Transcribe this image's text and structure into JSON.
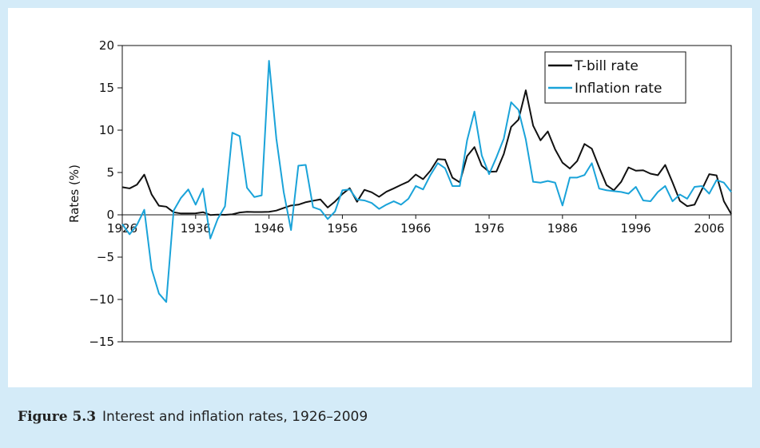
{
  "chart_data": {
    "type": "line",
    "ylabel": "Rates (%)",
    "x": [
      1926,
      1927,
      1928,
      1929,
      1930,
      1931,
      1932,
      1933,
      1934,
      1935,
      1936,
      1937,
      1938,
      1939,
      1940,
      1941,
      1942,
      1943,
      1944,
      1945,
      1946,
      1947,
      1948,
      1949,
      1950,
      1951,
      1952,
      1953,
      1954,
      1955,
      1956,
      1957,
      1958,
      1959,
      1960,
      1961,
      1962,
      1963,
      1964,
      1965,
      1966,
      1967,
      1968,
      1969,
      1970,
      1971,
      1972,
      1973,
      1974,
      1975,
      1976,
      1977,
      1978,
      1979,
      1980,
      1981,
      1982,
      1983,
      1984,
      1985,
      1986,
      1987,
      1988,
      1989,
      1990,
      1991,
      1992,
      1993,
      1994,
      1995,
      1996,
      1997,
      1998,
      1999,
      2000,
      2001,
      2002,
      2003,
      2004,
      2005,
      2006,
      2007,
      2008,
      2009
    ],
    "series": [
      {
        "name": "T-bill rate",
        "color": "#111111",
        "values": [
          3.27,
          3.12,
          3.56,
          4.75,
          2.41,
          1.07,
          0.96,
          0.3,
          0.16,
          0.17,
          0.18,
          0.31,
          -0.02,
          0.02,
          0.0,
          0.06,
          0.27,
          0.35,
          0.33,
          0.33,
          0.35,
          0.5,
          0.81,
          1.1,
          1.2,
          1.49,
          1.66,
          1.82,
          0.86,
          1.57,
          2.46,
          3.14,
          1.54,
          2.95,
          2.66,
          2.13,
          2.73,
          3.12,
          3.54,
          3.93,
          4.76,
          4.21,
          5.21,
          6.58,
          6.52,
          4.39,
          3.84,
          6.93,
          8.0,
          5.8,
          5.08,
          5.12,
          7.18,
          10.38,
          11.24,
          14.71,
          10.54,
          8.8,
          9.85,
          7.72,
          6.16,
          5.47,
          6.35,
          8.37,
          7.81,
          5.6,
          3.51,
          2.9,
          3.9,
          5.6,
          5.21,
          5.26,
          4.86,
          4.68,
          5.89,
          3.83,
          1.65,
          1.02,
          1.2,
          2.98,
          4.8,
          4.66,
          1.6,
          0.1
        ]
      },
      {
        "name": "Inflation rate",
        "color": "#1aa3d9",
        "values": [
          -1.1,
          -2.3,
          -1.2,
          0.6,
          -6.4,
          -9.3,
          -10.3,
          0.5,
          2.0,
          3.0,
          1.2,
          3.1,
          -2.8,
          -0.5,
          1.0,
          9.7,
          9.3,
          3.2,
          2.1,
          2.3,
          18.2,
          9.0,
          2.7,
          -1.8,
          5.8,
          5.9,
          0.9,
          0.6,
          -0.5,
          0.4,
          2.9,
          3.0,
          1.8,
          1.7,
          1.4,
          0.7,
          1.2,
          1.6,
          1.2,
          1.9,
          3.4,
          3.0,
          4.7,
          6.1,
          5.5,
          3.4,
          3.4,
          8.8,
          12.2,
          7.0,
          4.8,
          6.8,
          9.0,
          13.3,
          12.4,
          8.9,
          3.9,
          3.8,
          4.0,
          3.8,
          1.1,
          4.4,
          4.4,
          4.7,
          6.1,
          3.1,
          2.9,
          2.8,
          2.7,
          2.5,
          3.3,
          1.7,
          1.6,
          2.7,
          3.4,
          1.6,
          2.4,
          1.9,
          3.3,
          3.4,
          2.5,
          4.1,
          3.8,
          2.7
        ]
      }
    ],
    "xlim": [
      1926,
      2009
    ],
    "xticks": [
      1926,
      1936,
      1946,
      1956,
      1966,
      1976,
      1986,
      1996,
      2006
    ],
    "ylim": [
      -15,
      20
    ],
    "yticks": [
      {
        "value": -15,
        "label": "−15"
      },
      {
        "value": -10,
        "label": "−10"
      },
      {
        "value": -5,
        "label": "−5"
      },
      0,
      5,
      10,
      15,
      20
    ],
    "legend": "upper right"
  },
  "caption": {
    "label": "Figure 5.3",
    "text": "Interest and inflation rates, 1926–2009"
  }
}
